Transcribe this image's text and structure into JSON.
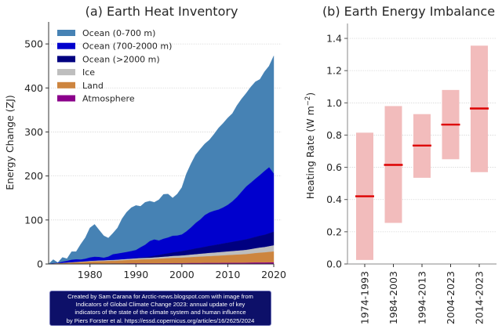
{
  "chart_data": [
    {
      "type": "area",
      "stacked": true,
      "title": "(a) Earth Heat Inventory",
      "xlabel": "",
      "ylabel": "Energy Change (ZJ)",
      "xlim": [
        1971,
        2020
      ],
      "ylim": [
        0,
        550
      ],
      "grid": true,
      "legend_position": "top-left",
      "x_ticks": [
        1980,
        1990,
        2000,
        2010,
        2020
      ],
      "y_ticks": [
        0,
        100,
        200,
        300,
        400,
        500
      ],
      "x": [
        1971,
        1972,
        1973,
        1974,
        1975,
        1976,
        1977,
        1978,
        1979,
        1980,
        1981,
        1982,
        1983,
        1984,
        1985,
        1986,
        1987,
        1988,
        1989,
        1990,
        1991,
        1992,
        1993,
        1994,
        1995,
        1996,
        1997,
        1998,
        1999,
        2000,
        2001,
        2002,
        2003,
        2004,
        2005,
        2006,
        2007,
        2008,
        2009,
        2010,
        2011,
        2012,
        2013,
        2014,
        2015,
        2016,
        2017,
        2018,
        2019,
        2020
      ],
      "series": [
        {
          "name": "Atmosphere",
          "color": "#8b008b",
          "values": [
            0,
            0,
            0,
            0,
            0.2,
            0.2,
            0.3,
            0.3,
            0.4,
            0.5,
            0.5,
            0.5,
            0.6,
            0.6,
            0.7,
            0.7,
            0.8,
            0.9,
            1,
            1,
            1,
            1,
            1,
            1.1,
            1.1,
            1.2,
            1.3,
            1.5,
            1.4,
            1.5,
            1.6,
            1.7,
            1.8,
            1.8,
            1.9,
            2,
            2,
            2,
            2.1,
            2.2,
            2.3,
            2.3,
            2.4,
            2.5,
            2.6,
            2.8,
            2.8,
            2.9,
            3,
            3.2
          ]
        },
        {
          "name": "Land",
          "color": "#cd853f",
          "values": [
            0,
            0.5,
            1,
            1.5,
            2,
            2.5,
            3,
            3.5,
            4,
            4.5,
            5,
            5.3,
            5.5,
            5.8,
            6,
            6.5,
            7,
            7.5,
            8,
            8.5,
            9,
            9.3,
            9.5,
            10,
            10.5,
            11,
            11.5,
            12,
            12.3,
            12.5,
            13,
            13.5,
            14,
            14.5,
            15,
            15.5,
            16,
            16.5,
            17,
            17.5,
            18,
            18.5,
            19,
            19.5,
            20.5,
            21.5,
            22.5,
            23,
            24,
            24.8
          ]
        },
        {
          "name": "Ice",
          "color": "#bebebe",
          "values": [
            0,
            0,
            0.2,
            0.3,
            0.5,
            0.6,
            0.8,
            1,
            1.2,
            1.4,
            1.5,
            1.6,
            1.8,
            1.9,
            2,
            2.1,
            2.3,
            2.5,
            2.6,
            2.8,
            3,
            3,
            3.1,
            3.3,
            3.5,
            3.8,
            4,
            4.3,
            4.5,
            4.8,
            5.2,
            5.6,
            6,
            6.4,
            6.8,
            7.2,
            7.5,
            7.8,
            8.1,
            8.4,
            8.7,
            9,
            9.3,
            9.7,
            10.2,
            11,
            11.6,
            12.2,
            13,
            14
          ]
        },
        {
          "name": "Ocean (>2000 m)",
          "color": "#000080",
          "values": [
            0,
            0,
            0,
            0,
            0,
            0,
            0,
            0,
            0,
            0,
            0,
            0,
            0,
            0,
            0,
            0,
            0,
            0,
            0.5,
            1,
            1.5,
            2,
            3,
            4,
            5,
            6,
            7,
            8,
            9,
            10,
            11,
            12,
            13,
            14,
            15,
            16,
            17,
            18,
            19,
            20,
            21,
            22,
            23,
            24,
            25,
            26,
            27,
            28,
            29.5,
            31
          ]
        },
        {
          "name": "Ocean (700-2000 m)",
          "color": "#0000cd",
          "values": [
            0,
            1,
            1,
            3,
            4,
            6,
            6,
            5,
            6,
            8,
            9,
            8,
            6,
            8,
            13,
            14,
            15,
            16,
            17,
            18,
            23,
            28,
            35,
            37,
            33,
            35,
            36,
            38,
            37,
            38,
            43,
            50,
            58,
            64,
            72,
            76,
            78,
            79,
            82,
            86,
            92,
            100,
            110,
            120,
            126,
            132,
            138,
            145,
            150,
            132
          ]
        },
        {
          "name": "Ocean (0-700 m)",
          "color": "#4682b4",
          "values": [
            0,
            8.5,
            0.8,
            10.2,
            5.3,
            18.7,
            17.9,
            35.2,
            48.4,
            67.6,
            74,
            61.6,
            50.1,
            42.7,
            48.3,
            58.7,
            77.9,
            91.1,
            98.9,
            101.7,
            93.5,
            96.7,
            91.4,
            84.6,
            92.9,
            101.2,
            99.2,
            86.2,
            94.8,
            107.2,
            131.2,
            145.2,
            155.2,
            160.3,
            162.3,
            165.3,
            174.5,
            185.7,
            191.8,
            197.9,
            200,
            208.2,
            211.3,
            212.3,
            217.7,
            220.7,
            217.6,
            225.9,
            230.5,
            267.8
          ]
        }
      ]
    },
    {
      "type": "bar",
      "subtype": "range-with-median",
      "title": "(b) Earth Energy Imbalance",
      "xlabel": "",
      "ylabel": "Heating Rate (W m⁻²)",
      "ylim": [
        0,
        1.5
      ],
      "grid": true,
      "y_ticks": [
        0.0,
        0.2,
        0.4,
        0.6,
        0.8,
        1.0,
        1.2,
        1.4
      ],
      "categories": [
        "1974-1993",
        "1984-2003",
        "1994-2013",
        "2004-2023",
        "2014-2023"
      ],
      "central": [
        0.42,
        0.615,
        0.735,
        0.865,
        0.965
      ],
      "low": [
        0.025,
        0.255,
        0.535,
        0.65,
        0.57
      ],
      "high": [
        0.815,
        0.98,
        0.93,
        1.08,
        1.355
      ],
      "range_color": "#f2bcbc",
      "central_color": "#dd0000"
    }
  ],
  "ylabel_b": {
    "main": "Heating Rate (W m",
    "sup": "−2",
    "close": ")"
  },
  "credit": {
    "lines": [
      "Created by Sam Carana for Arctic-news.blogspot.com with image from",
      "Indicators of Global Climate Change 2023: annual update of key",
      "indicators of the state of the climate system and human influence",
      "by Piers Forster et al. https://essd.copernicus.org/articles/16/2625/2024"
    ]
  }
}
